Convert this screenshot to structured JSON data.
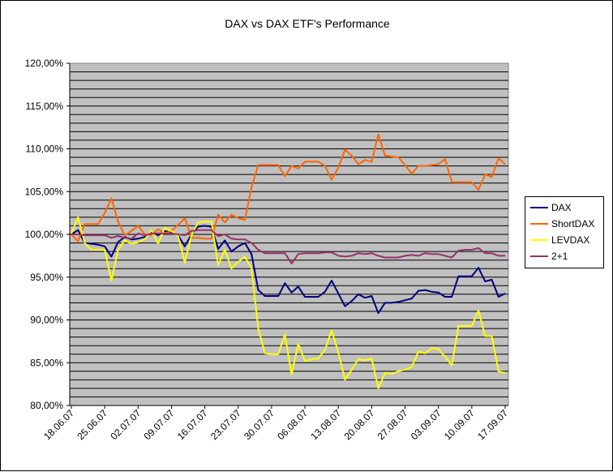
{
  "chart_data": {
    "type": "line",
    "title": "DAX vs DAX ETF's Performance",
    "xlabel": "",
    "ylabel": "",
    "ylim": [
      0.8,
      1.2
    ],
    "y_ticks": [
      "80,00%",
      "85,00%",
      "90,00%",
      "95,00%",
      "100,00%",
      "105,00%",
      "110,00%",
      "115,00%",
      "120,00%"
    ],
    "x_tick_labels": [
      "18.06.07",
      "25.06.07",
      "02.07.07",
      "09.07.07",
      "16.07.07",
      "23.07.07",
      "30.07.07",
      "06.08.07",
      "13.08.07",
      "20.08.07",
      "27.08.07",
      "03.09.07",
      "10.09.07",
      "17.09.07"
    ],
    "x_ticks_index": [
      0,
      5,
      10,
      15,
      20,
      25,
      30,
      35,
      40,
      45,
      50,
      55,
      60,
      65
    ],
    "n_points": 66,
    "grid": true,
    "plot_background": "#c0c0c0",
    "legend_position": "right",
    "series": [
      {
        "name": "DAX",
        "color": "#000080",
        "values": [
          1.0,
          1.005,
          0.99,
          0.989,
          0.988,
          0.986,
          0.974,
          0.991,
          0.997,
          0.994,
          0.995,
          0.997,
          1.003,
          0.999,
          1.004,
          1.002,
          0.999,
          0.986,
          1.0,
          1.009,
          1.01,
          1.009,
          0.983,
          0.993,
          0.98,
          0.986,
          0.99,
          0.977,
          0.935,
          0.928,
          0.928,
          0.928,
          0.943,
          0.932,
          0.939,
          0.927,
          0.927,
          0.927,
          0.933,
          0.946,
          0.931,
          0.916,
          0.922,
          0.93,
          0.926,
          0.928,
          0.908,
          0.92,
          0.92,
          0.921,
          0.923,
          0.925,
          0.934,
          0.935,
          0.933,
          0.932,
          0.927,
          0.927,
          0.951,
          0.951,
          0.951,
          0.961,
          0.945,
          0.947,
          0.927,
          0.931
        ]
      },
      {
        "name": "ShortDAX",
        "color": "#ff6600",
        "values": [
          1.0,
          0.992,
          1.012,
          1.012,
          1.012,
          1.025,
          1.042,
          1.015,
          0.999,
          1.004,
          1.01,
          1.0,
          0.999,
          1.006,
          1.001,
          1.004,
          1.011,
          1.019,
          0.996,
          0.996,
          0.995,
          0.995,
          1.023,
          1.014,
          1.023,
          1.019,
          1.017,
          1.055,
          1.081,
          1.081,
          1.081,
          1.081,
          1.068,
          1.08,
          1.077,
          1.085,
          1.085,
          1.085,
          1.08,
          1.064,
          1.078,
          1.099,
          1.092,
          1.082,
          1.087,
          1.085,
          1.117,
          1.092,
          1.091,
          1.09,
          1.081,
          1.071,
          1.08,
          1.08,
          1.081,
          1.082,
          1.088,
          1.061,
          1.061,
          1.061,
          1.061,
          1.052,
          1.07,
          1.067,
          1.089,
          1.082
        ]
      },
      {
        "name": "LEVDAX",
        "color": "#ffff00",
        "values": [
          1.001,
          1.02,
          0.99,
          0.982,
          0.982,
          0.982,
          0.946,
          0.982,
          0.993,
          0.989,
          0.991,
          0.994,
          1.005,
          0.989,
          1.008,
          1.004,
          0.998,
          0.967,
          0.999,
          1.014,
          1.015,
          1.015,
          0.964,
          0.982,
          0.96,
          0.968,
          0.974,
          0.96,
          0.89,
          0.861,
          0.86,
          0.86,
          0.883,
          0.836,
          0.872,
          0.852,
          0.854,
          0.855,
          0.865,
          0.888,
          0.862,
          0.83,
          0.842,
          0.854,
          0.853,
          0.855,
          0.82,
          0.838,
          0.837,
          0.84,
          0.842,
          0.845,
          0.863,
          0.861,
          0.867,
          0.866,
          0.857,
          0.847,
          0.893,
          0.893,
          0.893,
          0.911,
          0.881,
          0.881,
          0.84,
          0.838
        ]
      },
      {
        "name": "2+1",
        "color": "#993366",
        "values": [
          1.0,
          1.0,
          0.999,
          0.999,
          0.999,
          0.999,
          0.996,
          0.998,
          0.996,
          0.995,
          1.001,
          0.999,
          1.001,
          1.001,
          1.001,
          1.001,
          1.0,
          0.999,
          1.004,
          1.005,
          1.005,
          1.005,
          0.998,
          1.0,
          0.995,
          0.994,
          0.994,
          0.99,
          0.982,
          0.978,
          0.978,
          0.978,
          0.978,
          0.966,
          0.977,
          0.978,
          0.978,
          0.978,
          0.979,
          0.979,
          0.975,
          0.974,
          0.975,
          0.978,
          0.977,
          0.978,
          0.975,
          0.973,
          0.973,
          0.973,
          0.975,
          0.976,
          0.975,
          0.978,
          0.977,
          0.977,
          0.975,
          0.973,
          0.981,
          0.982,
          0.982,
          0.984,
          0.978,
          0.978,
          0.975,
          0.975
        ]
      }
    ]
  }
}
